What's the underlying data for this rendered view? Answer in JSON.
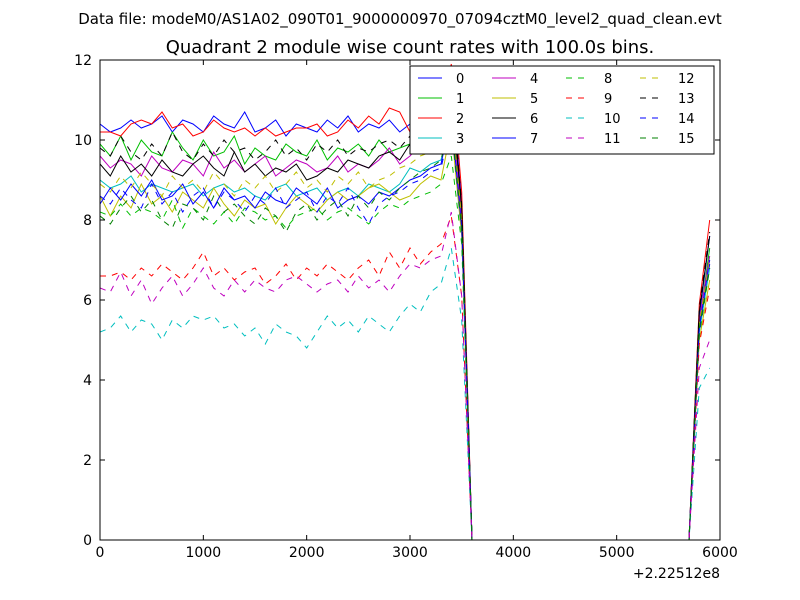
{
  "suptitle": "Data file: modeM0/AS1A02_090T01_9000000970_07094cztM0_level2_quad_clean.evt",
  "chart_data": {
    "type": "line",
    "title": "Quadrant 2 module wise count rates with 100.0s bins.",
    "xlabel": "",
    "ylabel": "",
    "x_offset_label": "+2.22512e8",
    "xlim": [
      0,
      6000
    ],
    "ylim": [
      0,
      12
    ],
    "xticks": [
      0,
      1000,
      2000,
      3000,
      4000,
      5000,
      6000
    ],
    "yticks": [
      0,
      2,
      4,
      6,
      8,
      10,
      12
    ],
    "grid": false,
    "legend_position": "top-right",
    "legend_columns": 4,
    "x": [
      0,
      100,
      200,
      300,
      400,
      500,
      600,
      700,
      800,
      900,
      1000,
      1100,
      1200,
      1300,
      1400,
      1500,
      1600,
      1700,
      1800,
      1900,
      2000,
      2100,
      2200,
      2300,
      2400,
      2500,
      2600,
      2700,
      2800,
      2900,
      3000,
      3100,
      3200,
      3300,
      3400,
      3500,
      3600,
      3700,
      3800,
      3900,
      4000,
      4100,
      4200,
      4300,
      4400,
      4500,
      4600,
      4700,
      4800,
      4900,
      5000,
      5100,
      5200,
      5300,
      5400,
      5500,
      5600,
      5700,
      5800,
      5900
    ],
    "series": [
      {
        "name": "0",
        "color": "#0000ff",
        "dash": "solid",
        "values": [
          10.4,
          10.2,
          10.3,
          10.5,
          10.3,
          10.4,
          10.6,
          10.2,
          10.5,
          10.4,
          10.2,
          10.6,
          10.4,
          10.3,
          10.7,
          10.2,
          10.3,
          10.5,
          10.1,
          10.4,
          10.3,
          10.2,
          10.5,
          10.3,
          10.6,
          10.2,
          10.4,
          10.3,
          10.5,
          10.2,
          10.4,
          10.6,
          10.5,
          10.8,
          11.6,
          8.4,
          0,
          0,
          0,
          0,
          0,
          0,
          0,
          0,
          0,
          0,
          0,
          0,
          0,
          0,
          0,
          0,
          0,
          0,
          0,
          0,
          0,
          0,
          5.6,
          7.6
        ]
      },
      {
        "name": "1",
        "color": "#00bf00",
        "dash": "solid",
        "values": [
          9.9,
          9.6,
          10.1,
          9.5,
          10.0,
          9.7,
          9.6,
          10.2,
          9.8,
          9.5,
          10.0,
          9.6,
          9.7,
          10.1,
          9.4,
          9.8,
          9.6,
          9.5,
          9.9,
          9.7,
          9.6,
          10.0,
          9.5,
          9.8,
          9.7,
          9.9,
          9.6,
          10.0,
          9.7,
          9.8,
          9.9,
          10.1,
          10.2,
          10.4,
          11.3,
          8.1,
          0,
          0,
          0,
          0,
          0,
          0,
          0,
          0,
          0,
          0,
          0,
          0,
          0,
          0,
          0,
          0,
          0,
          0,
          0,
          0,
          0,
          0,
          5.4,
          7.3
        ]
      },
      {
        "name": "2",
        "color": "#ff0000",
        "dash": "solid",
        "values": [
          10.2,
          10.2,
          10.1,
          10.4,
          10.5,
          10.4,
          10.7,
          10.3,
          10.4,
          10.1,
          10.2,
          10.5,
          10.3,
          10.2,
          10.3,
          10.1,
          10.3,
          10.1,
          10.2,
          10.3,
          10.3,
          10.4,
          10.1,
          10.2,
          10.5,
          10.3,
          10.6,
          10.4,
          10.8,
          10.7,
          10.2,
          10.6,
          10.7,
          10.6,
          11.9,
          8.7,
          0,
          0,
          0,
          0,
          0,
          0,
          0,
          0,
          0,
          0,
          0,
          0,
          0,
          0,
          0,
          0,
          0,
          0,
          0,
          0,
          0,
          0,
          5.9,
          8.0
        ]
      },
      {
        "name": "3",
        "color": "#00bfbf",
        "dash": "solid",
        "values": [
          9.0,
          8.8,
          8.9,
          9.1,
          8.7,
          8.9,
          8.8,
          8.7,
          8.8,
          8.9,
          8.6,
          8.8,
          8.9,
          8.7,
          8.8,
          8.6,
          8.5,
          8.8,
          8.9,
          8.6,
          8.7,
          8.8,
          8.5,
          8.7,
          8.8,
          8.6,
          8.9,
          8.8,
          8.7,
          8.9,
          9.3,
          9.2,
          9.4,
          9.5,
          10.6,
          7.8,
          0,
          0,
          0,
          0,
          0,
          0,
          0,
          0,
          0,
          0,
          0,
          0,
          0,
          0,
          0,
          0,
          0,
          0,
          0,
          0,
          0,
          0,
          5.2,
          6.8
        ]
      },
      {
        "name": "4",
        "color": "#bf00bf",
        "dash": "solid",
        "values": [
          9.6,
          9.3,
          9.5,
          9.4,
          9.1,
          9.6,
          9.3,
          9.2,
          9.5,
          9.4,
          9.1,
          9.7,
          9.3,
          9.5,
          9.2,
          9.4,
          9.6,
          9.1,
          9.3,
          9.5,
          9.4,
          9.2,
          9.3,
          9.6,
          9.2,
          9.4,
          9.3,
          9.5,
          9.8,
          9.4,
          9.6,
          9.9,
          10.0,
          10.1,
          11.0,
          8.0,
          0,
          0,
          0,
          0,
          0,
          0,
          0,
          0,
          0,
          0,
          0,
          0,
          0,
          0,
          0,
          0,
          0,
          0,
          0,
          0,
          0,
          0,
          5.5,
          7.1
        ]
      },
      {
        "name": "5",
        "color": "#bfbf00",
        "dash": "solid",
        "values": [
          8.6,
          8.1,
          8.6,
          8.3,
          8.9,
          8.4,
          8.6,
          8.2,
          8.7,
          8.5,
          8.3,
          8.8,
          8.4,
          8.1,
          8.5,
          8.3,
          8.4,
          7.9,
          8.3,
          8.6,
          8.4,
          8.2,
          8.5,
          8.7,
          8.5,
          8.6,
          8.8,
          8.9,
          8.7,
          8.5,
          8.6,
          8.9,
          9.1,
          9.0,
          10.3,
          7.6,
          0,
          0,
          0,
          0,
          0,
          0,
          0,
          0,
          0,
          0,
          0,
          0,
          0,
          0,
          0,
          0,
          0,
          0,
          0,
          0,
          0,
          0,
          5.0,
          6.5
        ]
      },
      {
        "name": "6",
        "color": "#000000",
        "dash": "solid",
        "values": [
          9.4,
          9.1,
          9.6,
          9.2,
          9.4,
          9.1,
          9.5,
          9.2,
          9.1,
          9.4,
          9.6,
          9.3,
          9.1,
          9.7,
          9.2,
          9.4,
          9.1,
          9.3,
          9.2,
          9.4,
          9.0,
          9.1,
          9.3,
          9.2,
          9.5,
          9.4,
          9.3,
          9.6,
          9.7,
          9.5,
          9.9,
          9.8,
          9.7,
          10.0,
          11.2,
          8.3,
          0,
          0,
          0,
          0,
          0,
          0,
          0,
          0,
          0,
          0,
          0,
          0,
          0,
          0,
          0,
          0,
          0,
          0,
          0,
          0,
          0,
          0,
          5.7,
          7.6
        ]
      },
      {
        "name": "7",
        "color": "#0000ff",
        "dash": "solid",
        "values": [
          8.4,
          8.8,
          8.5,
          8.9,
          8.6,
          9.0,
          8.5,
          8.6,
          8.9,
          8.4,
          8.7,
          8.3,
          8.8,
          8.5,
          8.6,
          8.3,
          8.7,
          8.5,
          8.4,
          8.8,
          8.6,
          8.4,
          8.8,
          8.3,
          8.5,
          8.6,
          8.4,
          8.7,
          8.6,
          8.8,
          9.0,
          9.1,
          9.3,
          9.4,
          10.6,
          7.8,
          0,
          0,
          0,
          0,
          0,
          0,
          0,
          0,
          0,
          0,
          0,
          0,
          0,
          0,
          0,
          0,
          0,
          0,
          0,
          0,
          0,
          0,
          5.3,
          7.0
        ]
      },
      {
        "name": "8",
        "color": "#00bf00",
        "dash": "dashed",
        "values": [
          8.2,
          8.1,
          8.4,
          8.1,
          8.3,
          8.2,
          8.0,
          8.5,
          7.8,
          8.3,
          8.1,
          7.9,
          8.2,
          7.9,
          8.3,
          8.2,
          8.0,
          8.1,
          7.8,
          8.1,
          8.2,
          8.3,
          8.0,
          8.2,
          8.3,
          8.1,
          7.9,
          8.2,
          8.4,
          8.3,
          8.5,
          8.6,
          8.7,
          8.9,
          9.6,
          7.4,
          0,
          0,
          0,
          0,
          0,
          0,
          0,
          0,
          0,
          0,
          0,
          0,
          0,
          0,
          0,
          0,
          0,
          0,
          0,
          0,
          0,
          0,
          5.1,
          6.8
        ]
      },
      {
        "name": "9",
        "color": "#ff0000",
        "dash": "dashed",
        "values": [
          6.6,
          6.6,
          6.7,
          6.5,
          6.8,
          6.6,
          6.9,
          6.7,
          6.5,
          6.8,
          7.2,
          6.6,
          6.8,
          6.5,
          6.7,
          6.8,
          6.4,
          6.6,
          6.9,
          6.5,
          6.8,
          6.6,
          6.9,
          6.7,
          6.5,
          6.8,
          7.0,
          6.6,
          7.2,
          6.8,
          7.3,
          6.9,
          7.2,
          7.4,
          8.1,
          6.1,
          0,
          0,
          0,
          0,
          0,
          0,
          0,
          0,
          0,
          0,
          0,
          0,
          0,
          0,
          0,
          0,
          0,
          0,
          0,
          0,
          0,
          0,
          4.9,
          6.3
        ]
      },
      {
        "name": "10",
        "color": "#00bfbf",
        "dash": "dashed",
        "values": [
          5.2,
          5.3,
          5.6,
          5.2,
          5.5,
          5.4,
          5.0,
          5.5,
          5.3,
          5.6,
          5.5,
          5.6,
          5.3,
          5.4,
          5.1,
          5.3,
          4.9,
          5.4,
          5.2,
          5.1,
          4.8,
          5.2,
          5.6,
          5.3,
          5.5,
          5.2,
          5.6,
          5.4,
          5.2,
          5.6,
          5.9,
          5.7,
          6.2,
          6.4,
          7.3,
          5.5,
          0,
          0,
          0,
          0,
          0,
          0,
          0,
          0,
          0,
          0,
          0,
          0,
          0,
          0,
          0,
          0,
          0,
          0,
          0,
          0,
          0,
          0,
          3.8,
          4.3
        ]
      },
      {
        "name": "11",
        "color": "#bf00bf",
        "dash": "dashed",
        "values": [
          6.3,
          6.2,
          6.7,
          6.1,
          6.5,
          5.9,
          6.3,
          6.6,
          6.1,
          6.4,
          6.8,
          6.3,
          6.1,
          6.5,
          6.2,
          6.5,
          6.3,
          6.2,
          6.5,
          6.6,
          6.4,
          6.2,
          6.4,
          6.5,
          6.2,
          6.6,
          6.3,
          6.5,
          6.2,
          6.6,
          6.9,
          6.8,
          7.0,
          7.1,
          8.2,
          6.1,
          0,
          0,
          0,
          0,
          0,
          0,
          0,
          0,
          0,
          0,
          0,
          0,
          0,
          0,
          0,
          0,
          0,
          0,
          0,
          0,
          0,
          0,
          4.3,
          5.0
        ]
      },
      {
        "name": "12",
        "color": "#bfbf00",
        "dash": "dashed",
        "values": [
          8.9,
          8.7,
          9.1,
          8.8,
          9.2,
          8.9,
          8.6,
          9.1,
          8.8,
          9.0,
          8.7,
          9.2,
          8.9,
          8.6,
          9.0,
          8.8,
          9.1,
          8.7,
          8.9,
          9.2,
          8.8,
          9.0,
          8.7,
          9.1,
          8.9,
          9.2,
          8.8,
          9.0,
          9.1,
          9.3,
          9.4,
          9.6,
          9.7,
          9.9,
          10.8,
          8.0,
          0,
          0,
          0,
          0,
          0,
          0,
          0,
          0,
          0,
          0,
          0,
          0,
          0,
          0,
          0,
          0,
          0,
          0,
          0,
          0,
          0,
          0,
          5.4,
          7.0
        ]
      },
      {
        "name": "13",
        "color": "#000000",
        "dash": "dashed",
        "values": [
          9.8,
          9.6,
          10.1,
          9.7,
          9.5,
          9.9,
          9.6,
          10.2,
          9.7,
          9.5,
          9.9,
          9.6,
          10.0,
          9.7,
          9.8,
          9.5,
          9.7,
          10.0,
          9.6,
          9.8,
          9.5,
          9.9,
          9.7,
          10.0,
          9.6,
          9.8,
          9.7,
          9.9,
          10.0,
          9.8,
          10.1,
          10.2,
          10.3,
          10.5,
          11.4,
          8.4,
          0,
          0,
          0,
          0,
          0,
          0,
          0,
          0,
          0,
          0,
          0,
          0,
          0,
          0,
          0,
          0,
          0,
          0,
          0,
          0,
          0,
          0,
          5.8,
          7.7
        ]
      },
      {
        "name": "14",
        "color": "#0000ff",
        "dash": "dashed",
        "values": [
          8.6,
          8.4,
          8.8,
          8.5,
          8.3,
          8.9,
          8.4,
          8.7,
          8.2,
          8.6,
          8.8,
          8.3,
          8.7,
          8.5,
          8.2,
          8.6,
          8.4,
          8.8,
          8.3,
          8.5,
          8.7,
          8.2,
          8.6,
          8.4,
          8.8,
          8.3,
          7.9,
          8.4,
          8.6,
          8.7,
          8.9,
          9.0,
          9.2,
          9.3,
          10.4,
          7.7,
          0,
          0,
          0,
          0,
          0,
          0,
          0,
          0,
          0,
          0,
          0,
          0,
          0,
          0,
          0,
          0,
          0,
          0,
          0,
          0,
          0,
          0,
          5.2,
          6.9
        ]
      },
      {
        "name": "15",
        "color": "#008000",
        "dash": "dashed",
        "values": [
          8.1,
          7.9,
          8.3,
          8.6,
          8.2,
          8.5,
          8.0,
          7.8,
          8.4,
          8.3,
          8.0,
          8.6,
          8.2,
          8.4,
          8.1,
          7.9,
          8.3,
          8.1,
          7.7,
          8.2,
          8.4,
          8.0,
          8.3,
          8.5,
          8.1,
          8.6,
          8.3,
          8.7,
          8.5,
          8.8,
          9.0,
          9.2,
          9.3,
          9.5,
          10.5,
          7.8,
          0,
          0,
          0,
          0,
          0,
          0,
          0,
          0,
          0,
          0,
          0,
          0,
          0,
          0,
          0,
          0,
          0,
          0,
          0,
          0,
          0,
          0,
          5.3,
          6.8
        ]
      }
    ]
  }
}
